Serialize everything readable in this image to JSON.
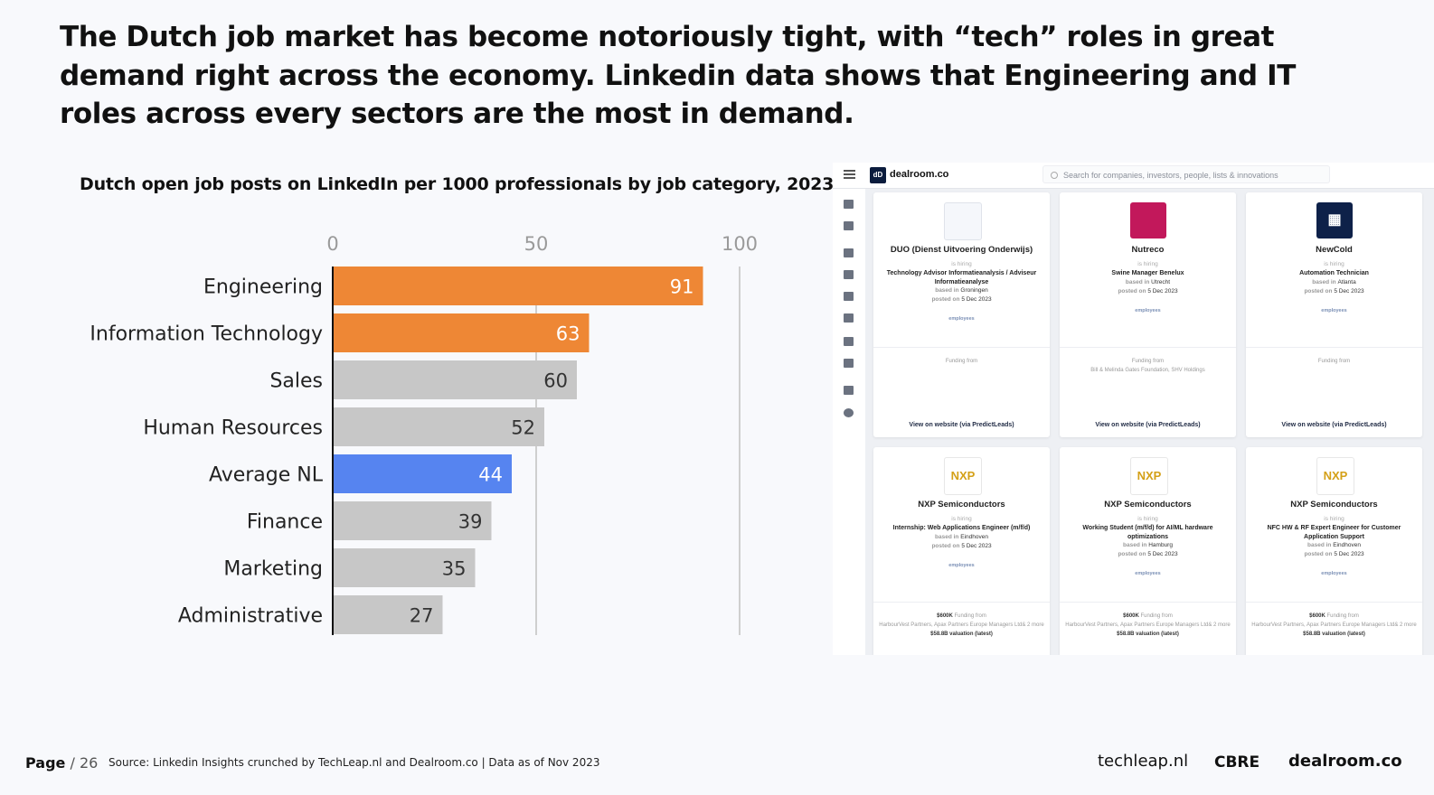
{
  "headline": "The Dutch job market has become notoriously tight, with “tech” roles in great demand right across the economy. Linkedin data shows that Engineering and IT roles across every sectors are the most in demand.",
  "colors": {
    "highlight": "#ee8735",
    "average": "#5684f0",
    "default": "#c7c7c7"
  },
  "chart_data": {
    "type": "bar",
    "orientation": "horizontal",
    "title": "Dutch open job posts on LinkedIn per 1000 professionals by job category, 2023",
    "xlim": [
      0,
      100
    ],
    "xticks": [
      0,
      50,
      100
    ],
    "xtick_labels": [
      "0",
      "50",
      "100"
    ],
    "categories": [
      "Engineering",
      "Information Technology",
      "Sales",
      "Human Resources",
      "Average NL",
      "Finance",
      "Marketing",
      "Administrative"
    ],
    "values": [
      91,
      63,
      60,
      52,
      44,
      39,
      35,
      27
    ],
    "value_labels": [
      "91",
      "63",
      "60",
      "52",
      "44",
      "39",
      "35",
      "27"
    ],
    "bar_colors": [
      "highlight",
      "highlight",
      "default",
      "default",
      "average",
      "default",
      "default",
      "default"
    ],
    "grid": true
  },
  "dealroom": {
    "brand": "dealroom.co",
    "logo_text": "dD",
    "search_placeholder": "Search for companies, investors, people, lists & innovations",
    "hiring": "is hiring",
    "based_in": "based in",
    "posted_on": "posted on",
    "employees": "employees",
    "funding_from": "Funding from",
    "cta": "View on website (via PredictLeads)",
    "cards": [
      {
        "company": "DUO (Dienst Uitvoering Onderwijs)",
        "role": "Technology Advisor Informatieanalysis / Adviseur Informatieanalyse",
        "city": "Groningen",
        "date": "5 Dec 2023",
        "funding_amount": "",
        "funding": "",
        "valuation": ""
      },
      {
        "company": "Nutreco",
        "role": "Swine Manager Benelux",
        "city": "Utrecht",
        "date": "5 Dec 2023",
        "funding_amount": "",
        "funding": "Bill & Melinda Gates Foundation, SHV Holdings",
        "valuation": ""
      },
      {
        "company": "NewCold",
        "role": "Automation Technician",
        "city": "Atlanta",
        "date": "5 Dec 2023",
        "funding_amount": "",
        "funding": "",
        "valuation": ""
      },
      {
        "company": "NXP Semiconductors",
        "role": "Internship: Web Applications Engineer (m/f/d)",
        "city": "Eindhoven",
        "date": "5 Dec 2023",
        "funding_amount": "$600K",
        "funding": "HarbourVest Partners, Apax Partners Europe Managers Ltd& 2 more",
        "valuation": "$58.8B valuation (latest)"
      },
      {
        "company": "NXP Semiconductors",
        "role": "Working Student (m/f/d) for AI/ML hardware optimizations",
        "city": "Hamburg",
        "date": "5 Dec 2023",
        "funding_amount": "$600K",
        "funding": "HarbourVest Partners, Apax Partners Europe Managers Ltd& 2 more",
        "valuation": "$58.8B valuation (latest)"
      },
      {
        "company": "NXP Semiconductors",
        "role": "NFC HW & RF Expert Engineer for Customer Application Support",
        "city": "Eindhoven",
        "date": "5 Dec 2023",
        "funding_amount": "$600K",
        "funding": "HarbourVest Partners, Apax Partners Europe Managers Ltd& 2 more",
        "valuation": "$58.8B valuation (latest)"
      }
    ]
  },
  "footer": {
    "page_label": "Page",
    "page_number": "/ 26",
    "source": "Source: Linkedin Insights crunched by TechLeap.nl and Dealroom.co | Data as of Nov 2023",
    "logos": [
      "techleap.nl",
      "CBRE",
      "dealroom.co"
    ]
  }
}
